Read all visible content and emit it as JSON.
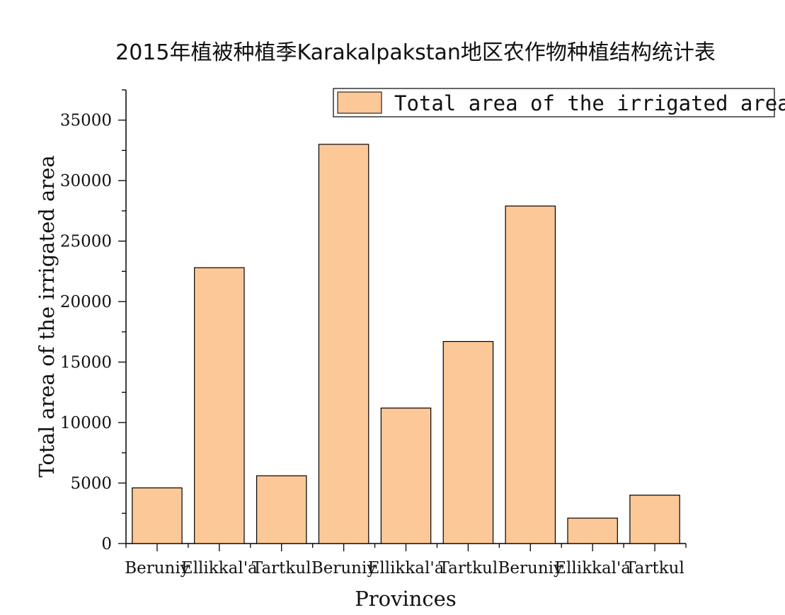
{
  "chart_data": {
    "type": "bar",
    "title": "2015年植被种植季Karakalpakstan地区农作物种植结构统计表",
    "xlabel": "Provinces",
    "ylabel": "Total area of the irrigated area",
    "categories": [
      "Beruniy",
      "Ellikkal'a",
      "Tartkul",
      "Beruniy",
      "Ellikkal'a",
      "Tartkul",
      "Beruniy",
      "Ellikkal'a",
      "Tartkul"
    ],
    "series": [
      {
        "name": "Total area of the irrigated area",
        "color": "#FDC898",
        "values": [
          4600,
          22800,
          5600,
          33000,
          11200,
          16700,
          27900,
          2100,
          4000
        ]
      }
    ],
    "ylim": [
      0,
      37500
    ],
    "yticks": [
      0,
      5000,
      10000,
      15000,
      20000,
      25000,
      30000,
      35000
    ],
    "ytick_labels": [
      "0",
      "5000",
      "10000",
      "15000",
      "20000",
      "25000",
      "30000",
      "35000"
    ],
    "grid": false,
    "legend_position": "top-right"
  }
}
